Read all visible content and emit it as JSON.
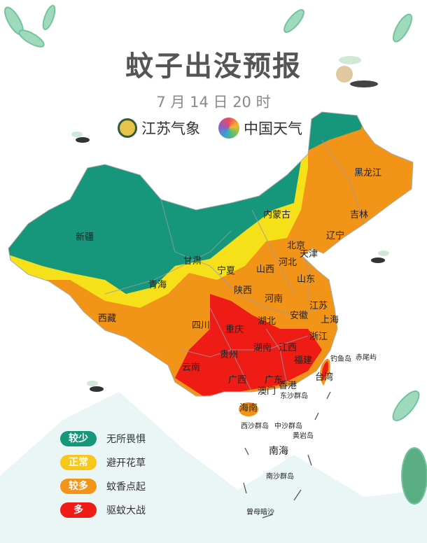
{
  "header": {
    "title": "蚊子出没预报",
    "date": "7 月 14 日 20 时"
  },
  "logos": {
    "jiangsu": "江苏气象",
    "china_weather": "中国天气"
  },
  "colors": {
    "less": "#16977b",
    "normal": "#f5e01a",
    "more": "#f29418",
    "many": "#ee1c14"
  },
  "legend": [
    {
      "level": "较少",
      "desc": "无所畏惧",
      "color": "#16977b"
    },
    {
      "level": "正常",
      "desc": "避开花草",
      "color": "#f7c71a"
    },
    {
      "level": "较多",
      "desc": "蚊香点起",
      "color": "#f29418"
    },
    {
      "level": "多",
      "desc": "驱蚊大战",
      "color": "#ee1c14"
    }
  ],
  "map": {
    "provinces": [
      "新疆",
      "西藏",
      "青海",
      "甘肃",
      "内蒙古",
      "黑龙江",
      "吉林",
      "辽宁",
      "北京",
      "天津",
      "河北",
      "山西",
      "宁夏",
      "陕西",
      "山东",
      "河南",
      "江苏",
      "安徽",
      "上海",
      "湖北",
      "四川",
      "重庆",
      "浙江",
      "湖南",
      "江西",
      "贵州",
      "云南",
      "广西",
      "广东",
      "福建",
      "台湾",
      "香港",
      "澳门",
      "海南"
    ],
    "islands": [
      "钓鱼岛",
      "赤尾屿",
      "东沙群岛",
      "西沙群岛",
      "中沙群岛",
      "黄岩岛",
      "南海",
      "南沙群岛",
      "曾母暗沙"
    ]
  }
}
